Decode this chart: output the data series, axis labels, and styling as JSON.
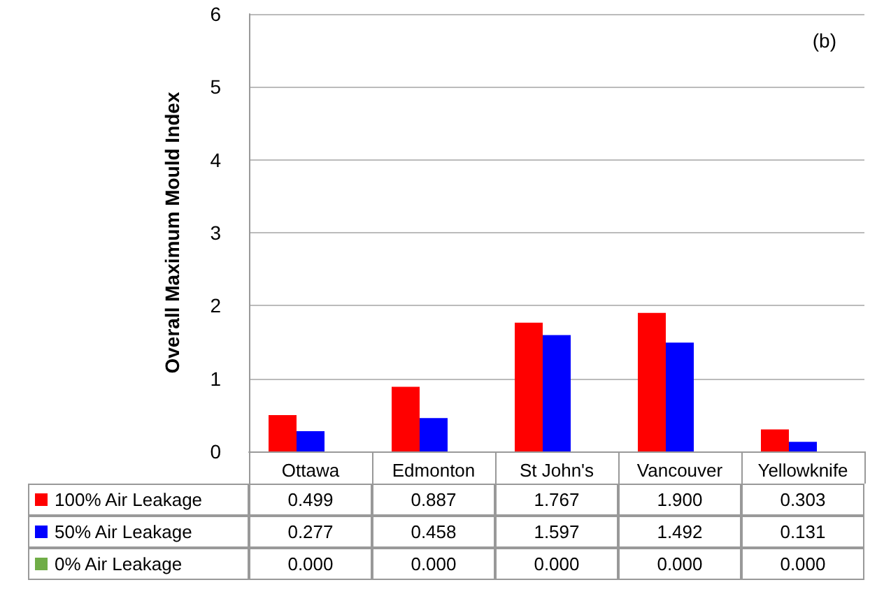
{
  "chart_data": {
    "type": "bar",
    "ylabel": "Overall Maximum Mould Index",
    "annotations": [
      "(b)"
    ],
    "categories": [
      "Ottawa",
      "Edmonton",
      "St John's",
      "Vancouver",
      "Yellowknife"
    ],
    "series": [
      {
        "name": "100% Air Leakage",
        "color": "#ff0000",
        "values": [
          0.499,
          0.887,
          1.767,
          1.9,
          0.303
        ],
        "value_labels": [
          "0.499",
          "0.887",
          "1.767",
          "1.900",
          "0.303"
        ]
      },
      {
        "name": "50% Air Leakage",
        "color": "#0000ff",
        "values": [
          0.277,
          0.458,
          1.597,
          1.492,
          0.131
        ],
        "value_labels": [
          "0.277",
          "0.458",
          "1.597",
          "1.492",
          "0.131"
        ]
      },
      {
        "name": "0% Air Leakage",
        "color": "#70ad47",
        "values": [
          0,
          0,
          0,
          0,
          0
        ],
        "value_labels": [
          "0.000",
          "0.000",
          "0.000",
          "0.000",
          "0.000"
        ]
      }
    ],
    "ylim": [
      0,
      6
    ],
    "yticks": [
      0,
      1,
      2,
      3,
      4,
      5,
      6
    ],
    "grid": "y",
    "legend": "bottom"
  }
}
